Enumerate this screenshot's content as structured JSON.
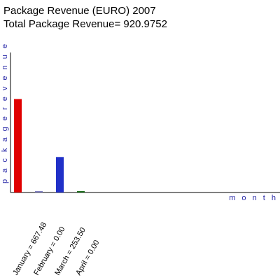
{
  "chart_data": {
    "type": "bar",
    "title": "Package Revenue (EURO)  2007",
    "subtitle": "Total Package Revenue= 920.9752",
    "xlabel": "m o n t h",
    "ylabel": "p a c k a g e   r e v e n u e",
    "categories": [
      "January",
      "February",
      "March",
      "April"
    ],
    "values": [
      667.48,
      0.0,
      253.5,
      0.0
    ],
    "tick_labels": [
      "January = 667.48",
      "February = 0.00",
      "March = 253.50",
      "April = 0.00"
    ],
    "colors": [
      "#e00000",
      "#8080c0",
      "#2030c8",
      "#207020"
    ],
    "ylim": [
      0,
      1000
    ],
    "grid": false,
    "legend": "none"
  }
}
